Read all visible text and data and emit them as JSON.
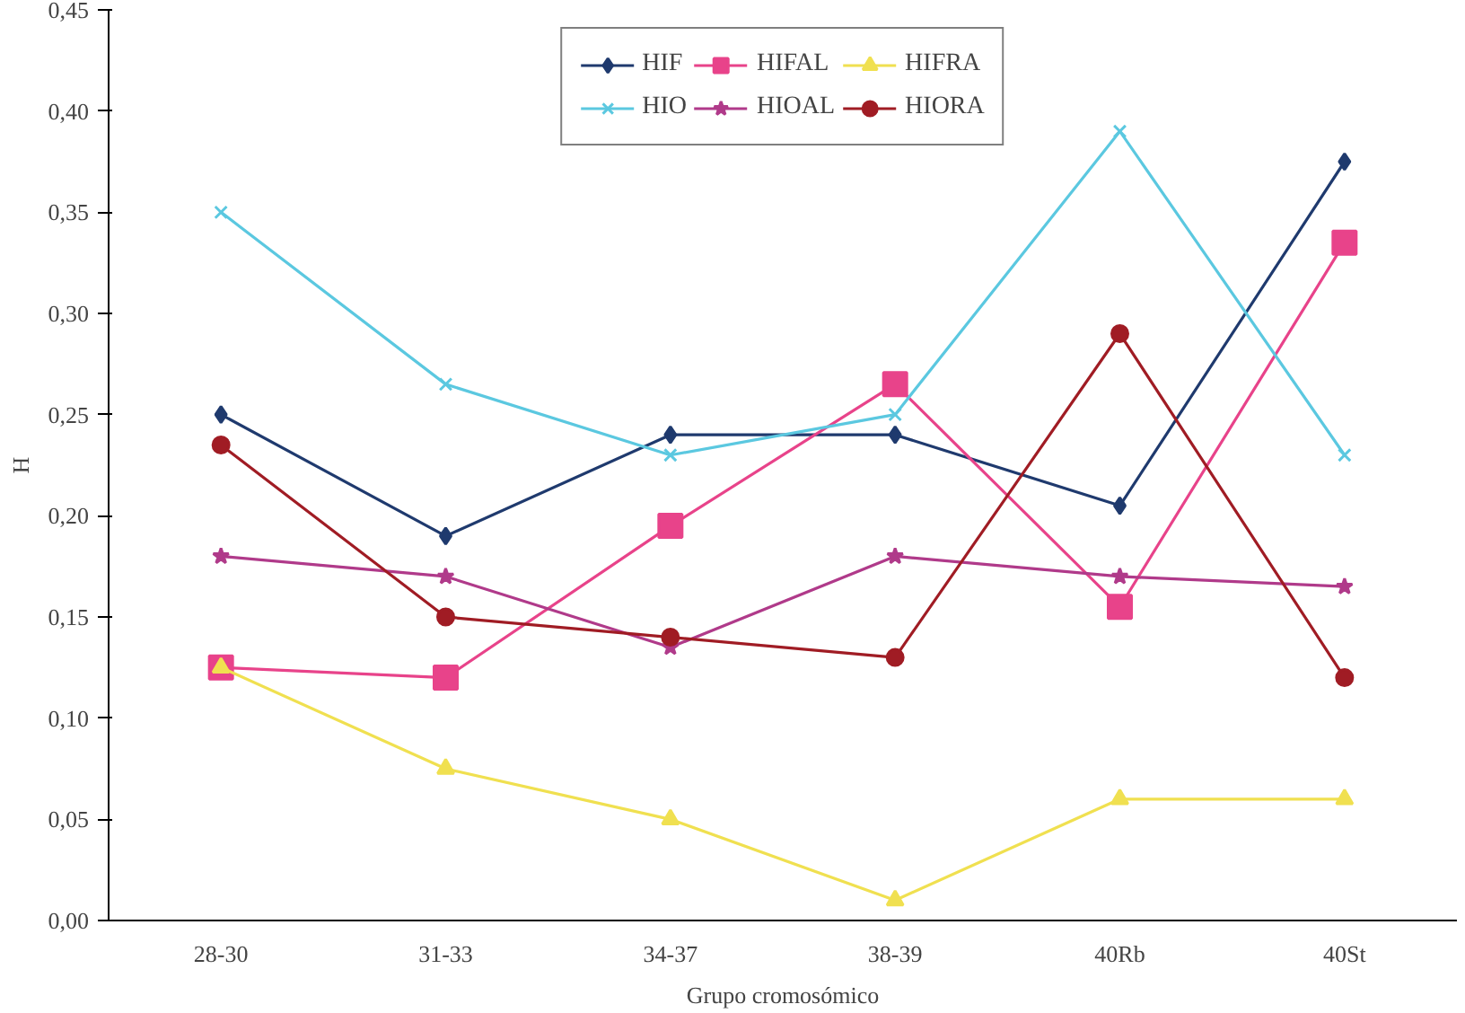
{
  "chart_data": {
    "type": "line",
    "xlabel": "Grupo cromosómico",
    "ylabel": "H",
    "categories": [
      "28-30",
      "31-33",
      "34-37",
      "38-39",
      "40Rb",
      "40St"
    ],
    "ylim": [
      0,
      0.45
    ],
    "yticks": [
      {
        "value": 0,
        "label": "0,00"
      },
      {
        "value": 0.05,
        "label": "0,05"
      },
      {
        "value": 0.1,
        "label": "0,10"
      },
      {
        "value": 0.15,
        "label": "0,15"
      },
      {
        "value": 0.2,
        "label": "0,20"
      },
      {
        "value": 0.25,
        "label": "0,25"
      },
      {
        "value": 0.3,
        "label": "0,30"
      },
      {
        "value": 0.35,
        "label": "0,35"
      },
      {
        "value": 0.4,
        "label": "0,40"
      },
      {
        "value": 0.45,
        "label": "0,45"
      }
    ],
    "grid": false,
    "legend": "top",
    "line_style": "solid",
    "series": [
      {
        "name": "HIF",
        "color": "#1f3a6e",
        "marker": "diamond",
        "values": [
          0.25,
          0.19,
          0.24,
          0.24,
          0.205,
          0.375
        ]
      },
      {
        "name": "HIFAL",
        "color": "#e8438a",
        "marker": "square",
        "values": [
          0.125,
          0.12,
          0.195,
          0.265,
          0.155,
          0.335
        ]
      },
      {
        "name": "HIFRA",
        "color": "#f0e050",
        "marker": "triangle",
        "values": [
          0.125,
          0.075,
          0.05,
          0.01,
          0.06,
          0.06
        ]
      },
      {
        "name": "HIO",
        "color": "#5bc8e0",
        "marker": "cross",
        "values": [
          0.35,
          0.265,
          0.23,
          0.25,
          0.39,
          0.23
        ]
      },
      {
        "name": "HIOAL",
        "color": "#b03a8a",
        "marker": "star",
        "values": [
          0.18,
          0.17,
          0.135,
          0.18,
          0.17,
          0.165
        ]
      },
      {
        "name": "HIORA",
        "color": "#a01c24",
        "marker": "circle",
        "values": [
          0.235,
          0.15,
          0.14,
          0.13,
          0.29,
          0.12
        ]
      }
    ]
  }
}
